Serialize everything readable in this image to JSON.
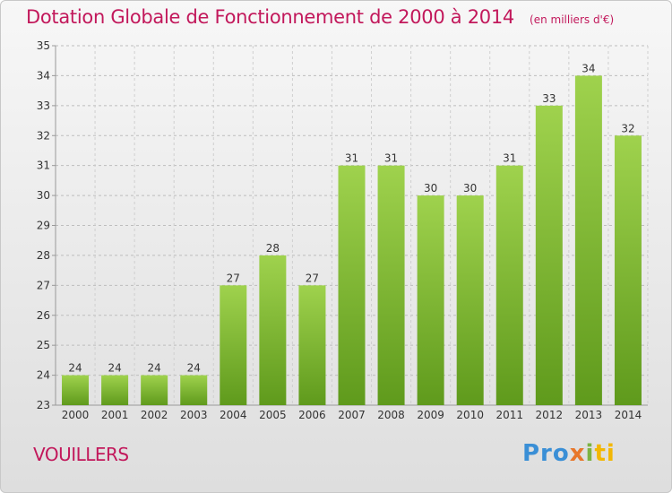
{
  "chart_data": {
    "type": "bar",
    "title": "Dotation Globale de Fonctionnement de 2000 à 2014",
    "unit": "(en milliers d'€)",
    "categories": [
      "2000",
      "2001",
      "2002",
      "2003",
      "2004",
      "2005",
      "2006",
      "2007",
      "2008",
      "2009",
      "2010",
      "2011",
      "2012",
      "2013",
      "2014"
    ],
    "values": [
      24,
      24,
      24,
      24,
      27,
      28,
      27,
      31,
      31,
      30,
      30,
      31,
      33,
      34,
      32
    ],
    "ylim": [
      23,
      35
    ],
    "yticks": [
      23,
      24,
      25,
      26,
      27,
      28,
      29,
      30,
      31,
      32,
      33,
      34,
      35
    ],
    "grid": true,
    "bar_color": "#7cb82f"
  },
  "commune": "VOUILLERS",
  "logo": "Proxiti"
}
